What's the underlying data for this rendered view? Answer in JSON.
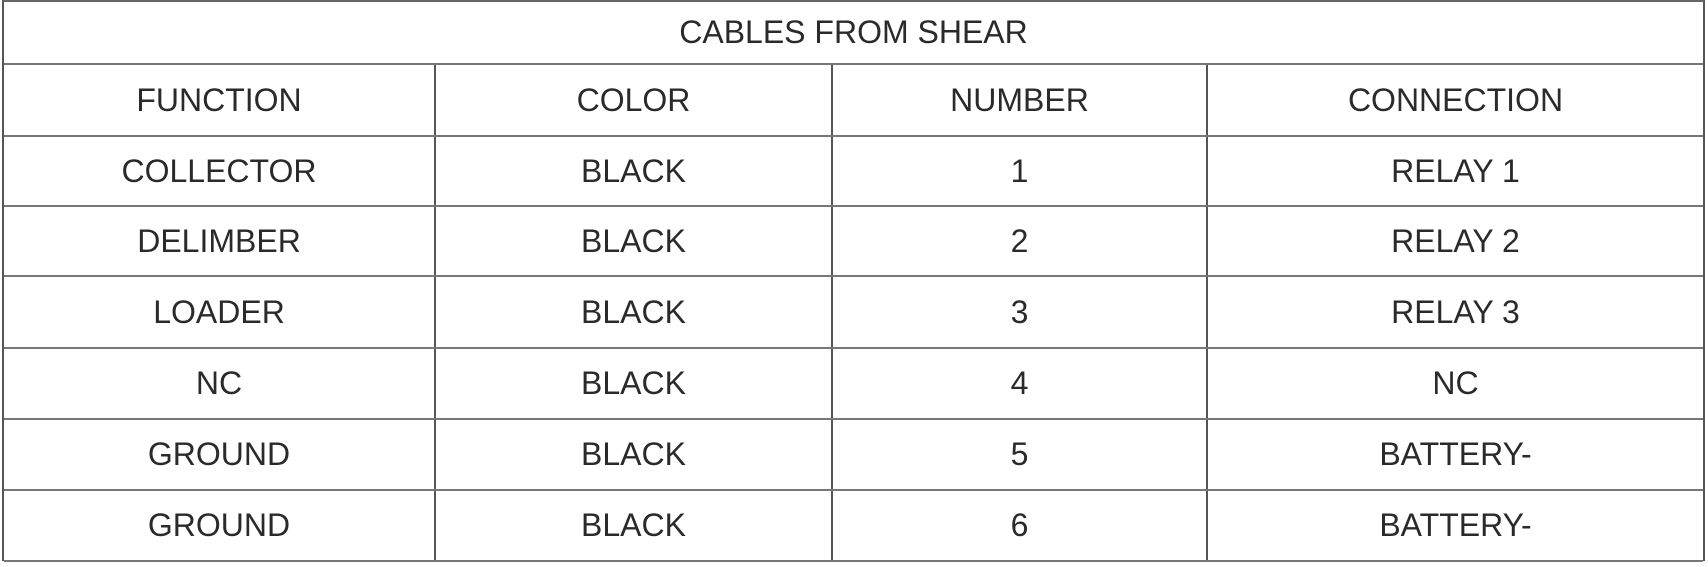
{
  "title": "CABLES FROM SHEAR",
  "columns": [
    "FUNCTION",
    "COLOR",
    "NUMBER",
    "CONNECTION"
  ],
  "rows": [
    [
      "COLLECTOR",
      "BLACK",
      "1",
      "RELAY 1"
    ],
    [
      "DELIMBER",
      "BLACK",
      "2",
      "RELAY 2"
    ],
    [
      "LOADER",
      "BLACK",
      "3",
      "RELAY 3"
    ],
    [
      "NC",
      "BLACK",
      "4",
      "NC"
    ],
    [
      "GROUND",
      "BLACK",
      "5",
      "BATTERY-"
    ],
    [
      "GROUND",
      "BLACK",
      "6",
      "BATTERY-"
    ]
  ]
}
